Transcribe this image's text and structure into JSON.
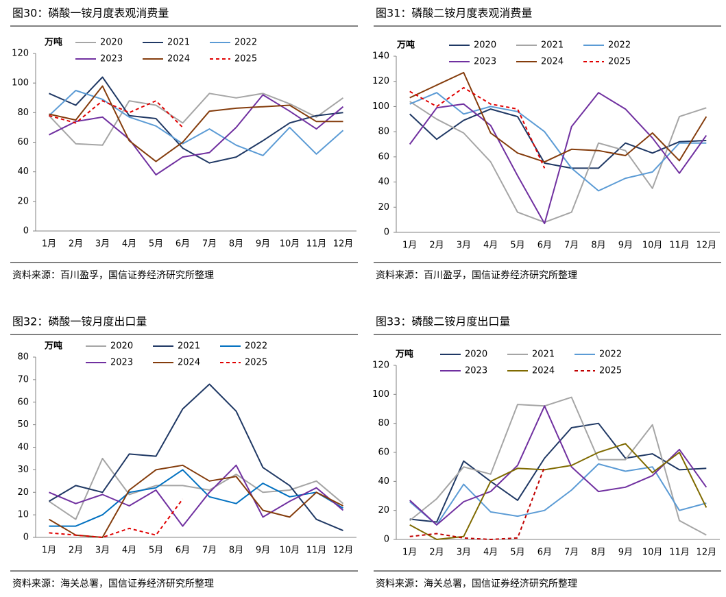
{
  "chart_data": [
    {
      "type": "line",
      "title": "图30：磷酸一铵月度表观消费量",
      "source": "资料来源：百川盈孚，国信证券经济研究所整理",
      "y_label": "万吨",
      "categories": [
        "1月",
        "2月",
        "3月",
        "4月",
        "5月",
        "6月",
        "7月",
        "8月",
        "9月",
        "10月",
        "11月",
        "12月"
      ],
      "ylim": [
        0,
        120
      ],
      "yticks": [
        0,
        20,
        40,
        60,
        80,
        100,
        120
      ],
      "series": [
        {
          "name": "2020",
          "color": "#a5a5a5",
          "values": [
            78,
            59,
            58,
            88,
            85,
            73,
            93,
            90,
            93,
            86,
            77,
            90
          ]
        },
        {
          "name": "2021",
          "color": "#1f3864",
          "values": [
            93,
            85,
            104,
            78,
            76,
            56,
            46,
            50,
            61,
            73,
            78,
            80
          ]
        },
        {
          "name": "2022",
          "color": "#5b9bd5",
          "values": [
            78,
            95,
            89,
            77,
            71,
            59,
            69,
            58,
            51,
            70,
            52,
            68
          ]
        },
        {
          "name": "2023",
          "color": "#7030a0",
          "values": [
            65,
            74,
            77,
            62,
            38,
            50,
            53,
            70,
            92,
            81,
            69,
            84
          ]
        },
        {
          "name": "2024",
          "color": "#843c0c",
          "values": [
            79,
            75,
            98,
            61,
            47,
            60,
            81,
            83,
            84,
            85,
            74,
            74
          ]
        },
        {
          "name": "2025",
          "color": "#e00000",
          "dashed": true,
          "values": [
            78,
            73,
            88,
            80,
            88,
            70,
            null,
            null,
            null,
            null,
            null,
            null
          ]
        }
      ]
    },
    {
      "type": "line",
      "title": "图31：磷酸二铵月度表观消费量",
      "source": "资料来源：百川盈孚，国信证券经济研究所整理",
      "y_label": "万吨",
      "categories": [
        "1月",
        "2月",
        "3月",
        "4月",
        "5月",
        "6月",
        "7月",
        "8月",
        "9月",
        "10月",
        "11月",
        "12月"
      ],
      "ylim": [
        0,
        140
      ],
      "yticks": [
        0,
        20,
        40,
        60,
        80,
        100,
        120,
        140
      ],
      "series": [
        {
          "name": "2020",
          "color": "#1f3864",
          "values": [
            94,
            74,
            89,
            98,
            92,
            55,
            51,
            51,
            71,
            63,
            72,
            73
          ]
        },
        {
          "name": "2021",
          "color": "#a5a5a5",
          "values": [
            104,
            90,
            79,
            56,
            16,
            8,
            16,
            71,
            65,
            35,
            92,
            99
          ]
        },
        {
          "name": "2022",
          "color": "#5b9bd5",
          "values": [
            102,
            111,
            94,
            100,
            96,
            80,
            51,
            33,
            43,
            48,
            71,
            71
          ]
        },
        {
          "name": "2023",
          "color": "#7030a0",
          "values": [
            70,
            99,
            102,
            85,
            45,
            7,
            84,
            111,
            98,
            75,
            47,
            77
          ]
        },
        {
          "name": "2024",
          "color": "#843c0c",
          "values": [
            107,
            117,
            127,
            79,
            63,
            56,
            66,
            65,
            61,
            79,
            57,
            92
          ]
        },
        {
          "name": "2025",
          "color": "#e00000",
          "dashed": true,
          "values": [
            112,
            100,
            115,
            102,
            98,
            51,
            null,
            null,
            null,
            null,
            null,
            null
          ]
        }
      ]
    },
    {
      "type": "line",
      "title": "图32：磷酸一铵月度出口量",
      "source": "资料来源：海关总署，国信证券经济研究所整理",
      "y_label": "万吨",
      "categories": [
        "1月",
        "2月",
        "3月",
        "4月",
        "5月",
        "6月",
        "7月",
        "8月",
        "9月",
        "10月",
        "11月",
        "12月"
      ],
      "ylim": [
        0,
        80
      ],
      "yticks": [
        0,
        10,
        20,
        30,
        40,
        50,
        60,
        70,
        80
      ],
      "series": [
        {
          "name": "2020",
          "color": "#a5a5a5",
          "values": [
            16,
            8,
            35,
            19,
            23,
            23,
            21,
            28,
            20,
            21,
            25,
            15
          ]
        },
        {
          "name": "2021",
          "color": "#1f3864",
          "values": [
            16,
            23,
            20,
            37,
            36,
            57,
            68,
            56,
            31,
            23,
            8,
            3
          ]
        },
        {
          "name": "2022",
          "color": "#0070c0",
          "values": [
            5,
            5,
            10,
            20,
            22,
            30,
            18,
            15,
            24,
            18,
            20,
            13
          ]
        },
        {
          "name": "2023",
          "color": "#7030a0",
          "values": [
            20,
            15,
            19,
            14,
            21,
            5,
            20,
            32,
            9,
            16,
            22,
            12
          ]
        },
        {
          "name": "2024",
          "color": "#843c0c",
          "values": [
            8,
            1,
            0,
            21,
            30,
            32,
            25,
            27,
            12,
            9,
            20,
            14
          ]
        },
        {
          "name": "2025",
          "color": "#e00000",
          "dashed": true,
          "values": [
            2,
            1,
            0,
            4,
            1,
            17,
            null,
            null,
            null,
            null,
            null,
            null
          ]
        }
      ]
    },
    {
      "type": "line",
      "title": "图33：磷酸二铵月度出口量",
      "source": "资料来源：海关总署，国信证券经济研究所整理",
      "y_label": "万吨",
      "categories": [
        "1月",
        "2月",
        "3月",
        "4月",
        "5月",
        "6月",
        "7月",
        "8月",
        "9月",
        "10月",
        "11月",
        "12月"
      ],
      "ylim": [
        0,
        120
      ],
      "yticks": [
        0,
        20,
        40,
        60,
        80,
        100,
        120
      ],
      "series": [
        {
          "name": "2020",
          "color": "#1f3864",
          "values": [
            14,
            12,
            54,
            40,
            27,
            56,
            77,
            80,
            56,
            59,
            48,
            49
          ]
        },
        {
          "name": "2021",
          "color": "#a5a5a5",
          "values": [
            13,
            28,
            50,
            45,
            93,
            92,
            98,
            55,
            55,
            79,
            13,
            3
          ]
        },
        {
          "name": "2022",
          "color": "#5b9bd5",
          "values": [
            26,
            10,
            38,
            19,
            16,
            20,
            34,
            52,
            47,
            50,
            20,
            25
          ]
        },
        {
          "name": "2023",
          "color": "#7030a0",
          "values": [
            27,
            10,
            26,
            33,
            51,
            92,
            50,
            33,
            36,
            44,
            62,
            36
          ]
        },
        {
          "name": "2024",
          "color": "#7f6a00",
          "values": [
            10,
            0,
            2,
            40,
            49,
            48,
            51,
            60,
            66,
            46,
            60,
            22
          ]
        },
        {
          "name": "2025",
          "color": "#c00000",
          "dashed": true,
          "values": [
            2,
            4,
            1,
            0,
            1,
            50,
            null,
            null,
            null,
            null,
            null,
            null
          ]
        }
      ]
    }
  ]
}
